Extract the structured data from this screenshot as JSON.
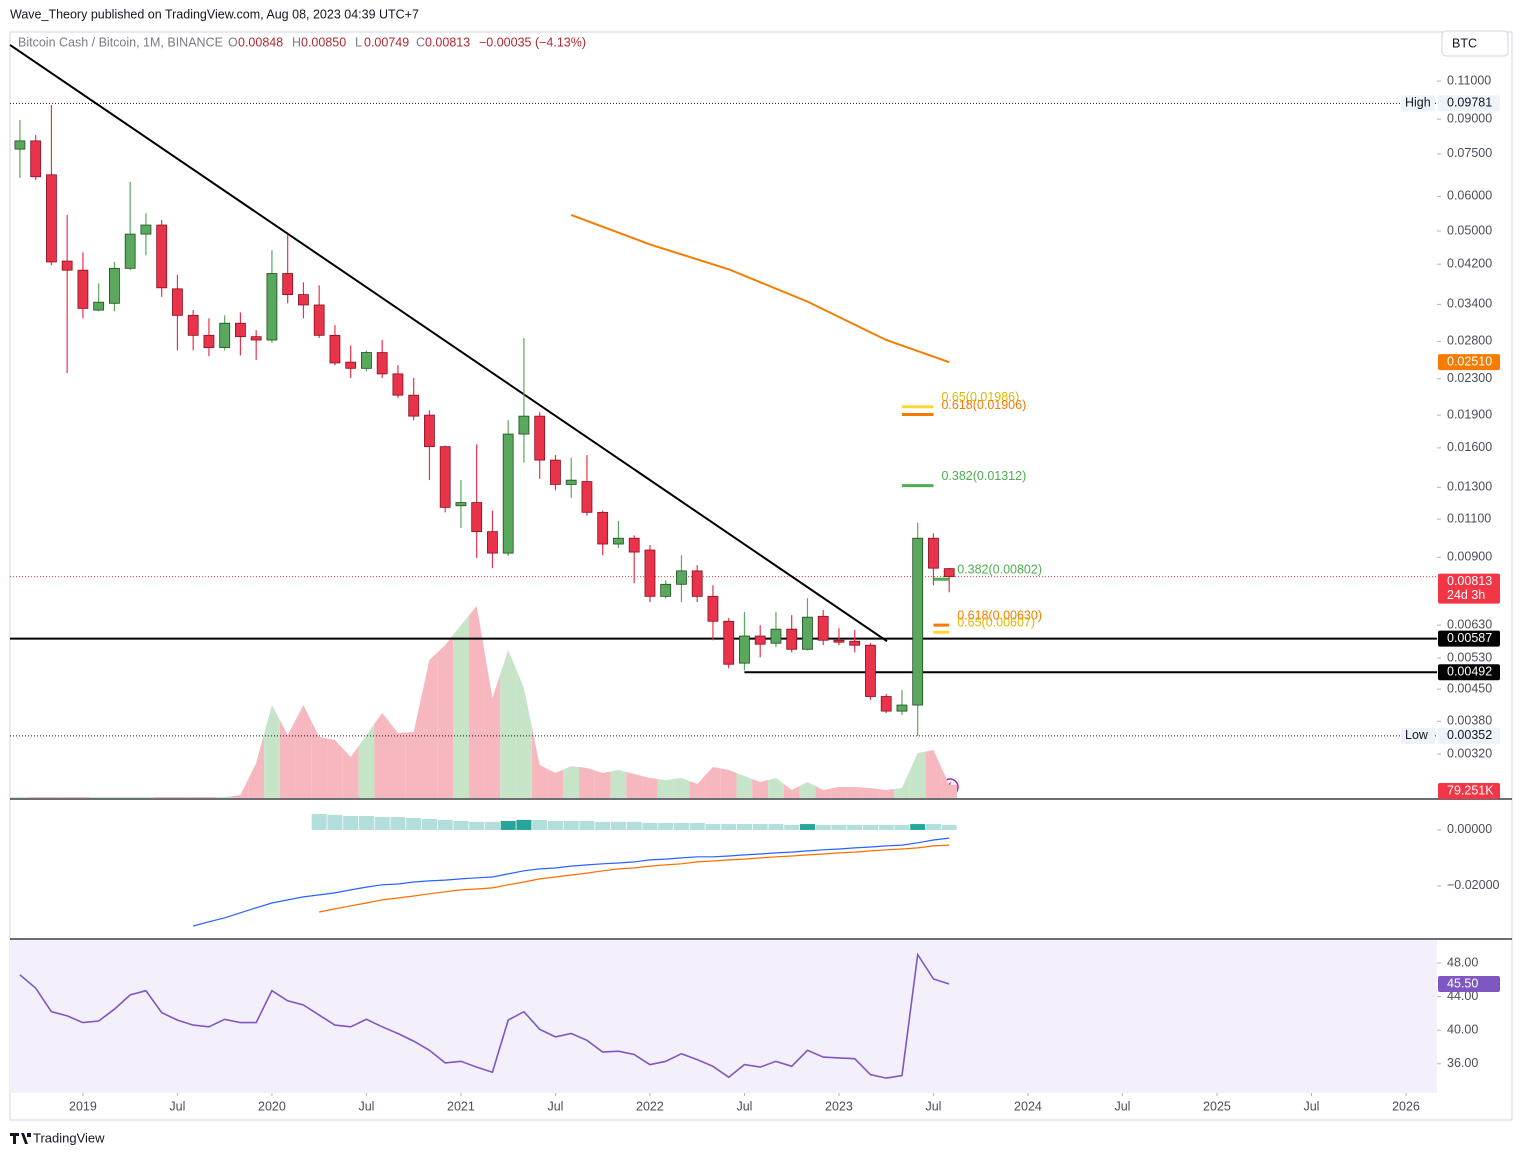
{
  "header": {
    "publisher": "Wave_Theory published on TradingView.com, Aug 08, 2023 04:39 UTC+7"
  },
  "legend": {
    "symbol": "Bitcoin Cash / Bitcoin, 1M, BINANCE",
    "fields": [
      {
        "key": "O",
        "value": "0.00848"
      },
      {
        "key": "H",
        "value": "0.00850"
      },
      {
        "key": "L",
        "value": "0.00749"
      },
      {
        "key": "C",
        "value": "0.00813"
      }
    ],
    "change": "−0.00035 (−4.13%)"
  },
  "currency_button": "BTC",
  "footer": "TradingView",
  "chart_data": [
    {
      "type": "candlestick",
      "scale": "log",
      "xlim": [
        -0.63,
        89.97
      ],
      "xticks": [
        {
          "value": 4,
          "label": "2019"
        },
        {
          "value": 10,
          "label": "Jul"
        },
        {
          "value": 16,
          "label": "2020"
        },
        {
          "value": 22,
          "label": "Jul"
        },
        {
          "value": 28,
          "label": "2021"
        },
        {
          "value": 34,
          "label": "Jul"
        },
        {
          "value": 40,
          "label": "2022"
        },
        {
          "value": 46,
          "label": "Jul"
        },
        {
          "value": 52,
          "label": "2023"
        },
        {
          "value": 58,
          "label": "Jul"
        },
        {
          "value": 64,
          "label": "2024"
        },
        {
          "value": 70,
          "label": "Jul"
        },
        {
          "value": 76,
          "label": "2025"
        },
        {
          "value": 82,
          "label": "Jul"
        },
        {
          "value": 88,
          "label": "2026"
        }
      ],
      "ylim": [
        0.00254,
        0.1401
      ],
      "yticks": [
        {
          "value": 0.11,
          "label": "0.11000"
        },
        {
          "value": 0.09,
          "label": "0.09000"
        },
        {
          "value": 0.075,
          "label": "0.07500"
        },
        {
          "value": 0.06,
          "label": "0.06000"
        },
        {
          "value": 0.05,
          "label": "0.05000"
        },
        {
          "value": 0.042,
          "label": "0.04200"
        },
        {
          "value": 0.034,
          "label": "0.03400"
        },
        {
          "value": 0.028,
          "label": "0.02800"
        },
        {
          "value": 0.023,
          "label": "0.02300"
        },
        {
          "value": 0.019,
          "label": "0.01900"
        },
        {
          "value": 0.016,
          "label": "0.01600"
        },
        {
          "value": 0.013,
          "label": "0.01300"
        },
        {
          "value": 0.011,
          "label": "0.01100"
        },
        {
          "value": 0.009,
          "label": "0.00900"
        },
        {
          "value": 0.0063,
          "label": "0.00630"
        },
        {
          "value": 0.0053,
          "label": "0.00530"
        },
        {
          "value": 0.0045,
          "label": "0.00450"
        },
        {
          "value": 0.0038,
          "label": "0.00380"
        },
        {
          "value": 0.0032,
          "label": "0.00320"
        }
      ],
      "colors": {
        "up": "#5aa85e",
        "down": "#e8334a",
        "up_border": "#1e4d22",
        "down_border": "#8a1020"
      },
      "candles": [
        [
          0.0769,
          0.0896,
          0.0661,
          0.0803
        ],
        [
          0.0803,
          0.0828,
          0.0654,
          0.0665
        ],
        [
          0.0672,
          0.097,
          0.0418,
          0.0425
        ],
        [
          0.0427,
          0.0544,
          0.0237,
          0.0407
        ],
        [
          0.0407,
          0.0447,
          0.0316,
          0.0333
        ],
        [
          0.033,
          0.038,
          0.0328,
          0.0344
        ],
        [
          0.0342,
          0.0425,
          0.0328,
          0.0411
        ],
        [
          0.0411,
          0.0647,
          0.0407,
          0.0492
        ],
        [
          0.0492,
          0.0549,
          0.044,
          0.0516
        ],
        [
          0.0516,
          0.053,
          0.0354,
          0.0371
        ],
        [
          0.0369,
          0.0397,
          0.0267,
          0.0321
        ],
        [
          0.0321,
          0.033,
          0.0267,
          0.0289
        ],
        [
          0.0289,
          0.0316,
          0.0259,
          0.0271
        ],
        [
          0.0271,
          0.0321,
          0.0267,
          0.0308
        ],
        [
          0.0308,
          0.0326,
          0.026,
          0.0287
        ],
        [
          0.0287,
          0.0297,
          0.0254,
          0.0282
        ],
        [
          0.0282,
          0.0452,
          0.0278,
          0.04
        ],
        [
          0.04,
          0.049,
          0.0342,
          0.0358
        ],
        [
          0.0358,
          0.0382,
          0.0316,
          0.0339
        ],
        [
          0.0339,
          0.0376,
          0.0285,
          0.0289
        ],
        [
          0.0289,
          0.0305,
          0.0247,
          0.025
        ],
        [
          0.0251,
          0.0274,
          0.0231,
          0.0243
        ],
        [
          0.0243,
          0.0267,
          0.0239,
          0.0264
        ],
        [
          0.0264,
          0.0282,
          0.0231,
          0.0236
        ],
        [
          0.0236,
          0.0247,
          0.0208,
          0.0211
        ],
        [
          0.0211,
          0.0231,
          0.0185,
          0.0189
        ],
        [
          0.019,
          0.0195,
          0.0135,
          0.0161
        ],
        [
          0.0161,
          0.0162,
          0.0114,
          0.0117
        ],
        [
          0.0118,
          0.0135,
          0.0105,
          0.012
        ],
        [
          0.012,
          0.0163,
          0.00897,
          0.0103
        ],
        [
          0.0103,
          0.0115,
          0.0085,
          0.0092
        ],
        [
          0.0092,
          0.0185,
          0.00906,
          0.0172
        ],
        [
          0.0172,
          0.0285,
          0.0148,
          0.0189
        ],
        [
          0.0189,
          0.0193,
          0.0136,
          0.015
        ],
        [
          0.015,
          0.0154,
          0.0128,
          0.0132
        ],
        [
          0.0132,
          0.0152,
          0.0123,
          0.0135
        ],
        [
          0.0134,
          0.0154,
          0.0112,
          0.0114
        ],
        [
          0.0114,
          0.0115,
          0.0091,
          0.00965
        ],
        [
          0.00965,
          0.0109,
          0.00945,
          0.00995
        ],
        [
          0.00995,
          0.0101,
          0.00785,
          0.00925
        ],
        [
          0.00935,
          0.0096,
          0.00711,
          0.00733
        ],
        [
          0.00733,
          0.00798,
          0.00726,
          0.00781
        ],
        [
          0.00781,
          0.0091,
          0.00711,
          0.00838
        ],
        [
          0.00838,
          0.00864,
          0.00711,
          0.00733
        ],
        [
          0.00733,
          0.00777,
          0.00582,
          0.00643
        ],
        [
          0.00643,
          0.00654,
          0.00502,
          0.00513
        ],
        [
          0.00516,
          0.00675,
          0.00497,
          0.00595
        ],
        [
          0.00595,
          0.0063,
          0.00532,
          0.0057
        ],
        [
          0.00573,
          0.00675,
          0.00561,
          0.00617
        ],
        [
          0.00617,
          0.00664,
          0.00546,
          0.00555
        ],
        [
          0.00555,
          0.00726,
          0.00552,
          0.00657
        ],
        [
          0.0066,
          0.00682,
          0.00567,
          0.00582
        ],
        [
          0.00582,
          0.0062,
          0.00567,
          0.00576
        ],
        [
          0.00579,
          0.00614,
          0.00546,
          0.00567
        ],
        [
          0.00567,
          0.00573,
          0.00425,
          0.00433
        ],
        [
          0.00433,
          0.00439,
          0.00397,
          0.00401
        ],
        [
          0.00401,
          0.00448,
          0.00393,
          0.00414
        ],
        [
          0.00414,
          0.0108,
          0.00352,
          0.00995
        ],
        [
          0.00995,
          0.0102,
          0.00777,
          0.0085
        ],
        [
          0.00848,
          0.0085,
          0.00749,
          0.00813
        ]
      ],
      "volume": {
        "ylim": [
          0,
          1200
        ],
        "colors": {
          "up": "#c6e5c8",
          "down": "#f7b7be"
        },
        "values": [
          6,
          6,
          6,
          6,
          6,
          6,
          6,
          6,
          6,
          6,
          6,
          6,
          6,
          6,
          18,
          210,
          558,
          378,
          558,
          366,
          348,
          246,
          378,
          510,
          390,
          396,
          828,
          918,
          1038,
          1152,
          600,
          888,
          660,
          198,
          150,
          192,
          180,
          150,
          168,
          144,
          120,
          108,
          120,
          84,
          186,
          168,
          132,
          96,
          120,
          48,
          96,
          48,
          66,
          66,
          60,
          48,
          60,
          270,
          288,
          79.251
        ],
        "last_label": "79.251K"
      },
      "trendline": {
        "x": [
          -0.63,
          55.05
        ],
        "y": [
          0.133,
          0.00579
        ],
        "color": "#000000"
      },
      "ma": {
        "x": [
          35,
          40,
          45,
          50,
          55,
          59
        ],
        "values": [
          0.0544,
          0.0466,
          0.0409,
          0.0345,
          0.0282,
          0.0251
        ],
        "color": "#f57c00",
        "last_label": "0.02510"
      },
      "fibs": [
        {
          "label": "0.65(0.01986)",
          "value": 0.01986,
          "x": [
            56,
            58
          ],
          "color": "#fdd835"
        },
        {
          "label": "0.618(0.01906)",
          "value": 0.01906,
          "x": [
            56,
            58
          ],
          "color": "#f57c00"
        },
        {
          "label": "0.382(0.01312)",
          "value": 0.01312,
          "x": [
            56,
            58
          ],
          "color": "#4caf50"
        },
        {
          "label": "0.382(0.00802)",
          "value": 0.00802,
          "x": [
            58,
            59
          ],
          "color": "#4caf50"
        },
        {
          "label": "0.618(0.00630)",
          "value": 0.0063,
          "x": [
            58,
            59
          ],
          "color": "#f57c00"
        },
        {
          "label": "0.65(0.00607)",
          "value": 0.00607,
          "x": [
            58,
            59
          ],
          "color": "#fdd835"
        }
      ],
      "hlines": [
        {
          "value": 0.00587,
          "x0": -0.63
        },
        {
          "value": 0.00492,
          "x0": 46
        }
      ],
      "high": {
        "tag": "High",
        "value": 0.09781
      },
      "low": {
        "tag": "Low",
        "value": 0.00352
      },
      "last_price": {
        "value": 0.00813,
        "countdown": "24d 3h"
      }
    },
    {
      "type": "macd",
      "ylim": [
        -0.0386,
        0.0107
      ],
      "yticks": [
        {
          "value": 0,
          "label": "0.00000"
        },
        {
          "value": -0.02,
          "label": "−0.02000"
        }
      ],
      "histogram": {
        "colors": {
          "rising": "#26a69a",
          "falling": "#b2dfdb"
        },
        "values": [
          null,
          null,
          null,
          null,
          null,
          null,
          null,
          null,
          null,
          null,
          null,
          null,
          null,
          null,
          null,
          null,
          null,
          null,
          null,
          0.0057,
          0.0054,
          0.005,
          0.005,
          0.0046,
          0.0046,
          0.0043,
          0.0039,
          0.0036,
          0.0032,
          0.0029,
          0.0029,
          0.0032,
          0.0036,
          0.0036,
          0.0032,
          0.0032,
          0.0032,
          0.0029,
          0.0029,
          0.0029,
          0.0025,
          0.0025,
          0.0025,
          0.0025,
          0.0021,
          0.0021,
          0.0021,
          0.0021,
          0.0021,
          0.0018,
          0.0021,
          0.0018,
          0.0018,
          0.0018,
          0.0018,
          0.0018,
          0.0018,
          0.0021,
          0.0021,
          0.0018
        ]
      },
      "lines": [
        {
          "color": "#2962ff",
          "values": [
            null,
            null,
            null,
            null,
            null,
            null,
            null,
            null,
            null,
            null,
            null,
            -0.0343,
            -0.0328,
            -0.0314,
            -0.0296,
            -0.0278,
            -0.0261,
            -0.025,
            -0.0239,
            -0.0232,
            -0.0225,
            -0.0214,
            -0.0204,
            -0.0196,
            -0.0193,
            -0.0186,
            -0.0182,
            -0.0179,
            -0.0175,
            -0.0171,
            -0.0168,
            -0.0157,
            -0.0146,
            -0.0139,
            -0.0136,
            -0.0129,
            -0.0125,
            -0.0121,
            -0.0118,
            -0.0114,
            -0.0107,
            -0.0104,
            -0.01,
            -0.0096,
            -0.0096,
            -0.0093,
            -0.0089,
            -0.0086,
            -0.0082,
            -0.0079,
            -0.0075,
            -0.0071,
            -0.0068,
            -0.0064,
            -0.0061,
            -0.0057,
            -0.0054,
            -0.0046,
            -0.0036,
            -0.0029
          ]
        },
        {
          "color": "#ff6d00",
          "values": [
            null,
            null,
            null,
            null,
            null,
            null,
            null,
            null,
            null,
            null,
            null,
            null,
            null,
            null,
            null,
            null,
            null,
            null,
            null,
            -0.0293,
            -0.0282,
            -0.0271,
            -0.0261,
            -0.025,
            -0.0243,
            -0.0236,
            -0.0228,
            -0.0221,
            -0.0214,
            -0.0211,
            -0.0207,
            -0.0196,
            -0.0186,
            -0.0175,
            -0.0168,
            -0.0161,
            -0.0154,
            -0.0146,
            -0.0139,
            -0.0136,
            -0.0129,
            -0.0125,
            -0.0121,
            -0.0114,
            -0.0111,
            -0.0107,
            -0.0104,
            -0.01,
            -0.0096,
            -0.0093,
            -0.0089,
            -0.0086,
            -0.0082,
            -0.0079,
            -0.0075,
            -0.0071,
            -0.0068,
            -0.0064,
            -0.0057,
            -0.0054
          ]
        }
      ]
    },
    {
      "type": "line",
      "ylim": [
        32.52,
        50.74
      ],
      "yticks": [
        {
          "value": 48,
          "label": "48.00"
        },
        {
          "value": 44,
          "label": "44.00"
        },
        {
          "value": 40,
          "label": "40.00"
        },
        {
          "value": 36,
          "label": "36.00"
        }
      ],
      "color": "#7e57c2",
      "band_color": "#f4f0fb",
      "values": [
        46.6,
        45.0,
        42.2,
        41.7,
        40.9,
        41.1,
        42.5,
        44.2,
        44.7,
        42.1,
        41.2,
        40.6,
        40.4,
        41.3,
        40.9,
        40.9,
        44.7,
        43.5,
        43.0,
        41.8,
        40.6,
        40.4,
        41.3,
        40.4,
        39.6,
        38.7,
        37.6,
        36.1,
        36.3,
        35.6,
        35.0,
        41.2,
        42.2,
        40.1,
        39.2,
        39.6,
        38.8,
        37.4,
        37.5,
        37.1,
        35.9,
        36.3,
        37.2,
        36.5,
        35.7,
        34.4,
        35.9,
        35.6,
        36.3,
        35.7,
        37.6,
        36.8,
        36.7,
        36.6,
        34.7,
        34.3,
        34.6,
        49.0,
        46.1,
        45.5
      ],
      "last_label": "45.50"
    }
  ]
}
